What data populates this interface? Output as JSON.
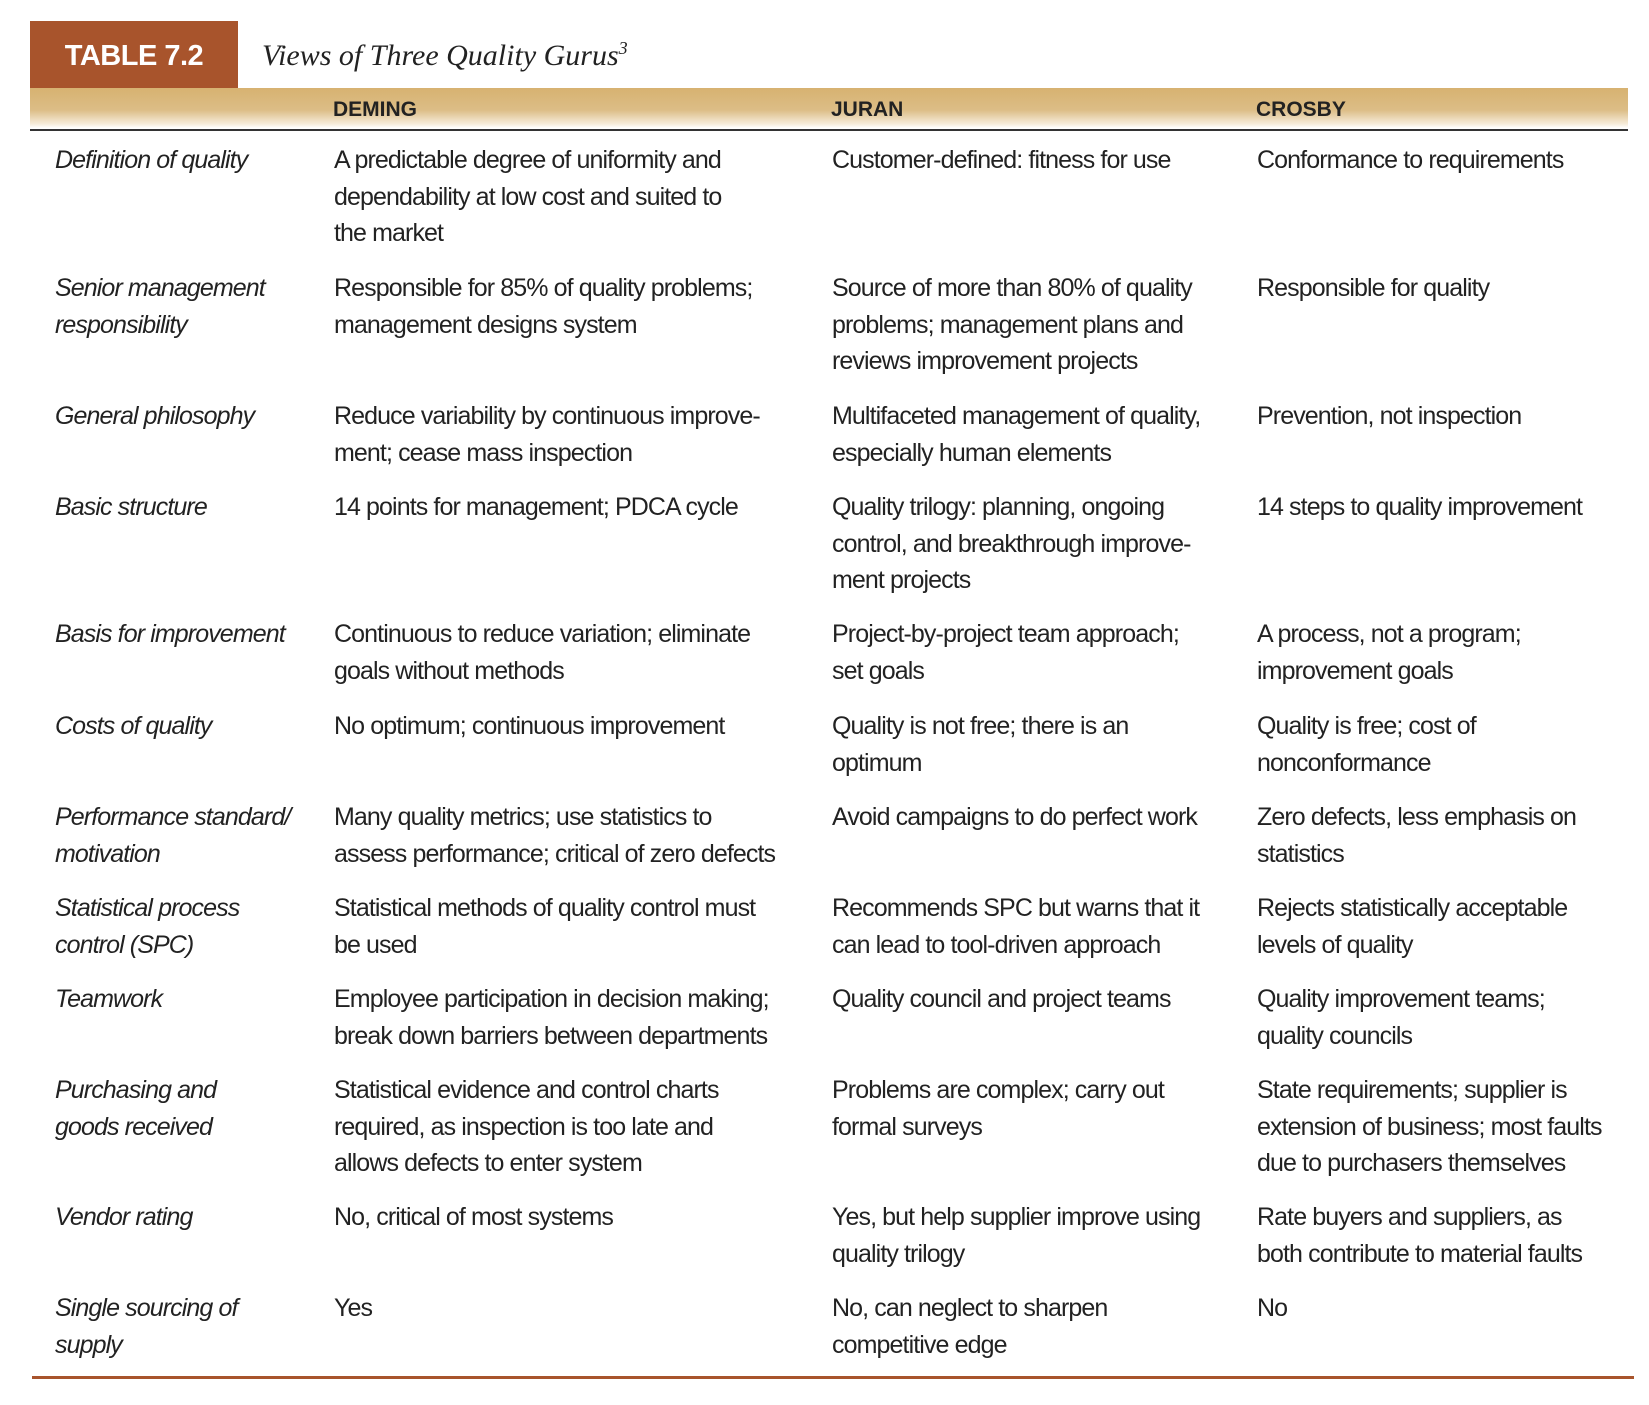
{
  "table": {
    "number": "TABLE 7.2",
    "title": "Views of Three Quality Gurus",
    "footnote_marker": "3",
    "accent_color": "#a8542c",
    "band_color": "#d7b271",
    "columns": [
      "DEMING",
      "JURAN",
      "CROSBY"
    ],
    "rows": [
      {
        "label": [
          "Definition of quality"
        ],
        "deming": [
          "A predictable degree of uniformity and",
          "dependability at low cost and suited to",
          "the market"
        ],
        "juran": [
          "Customer-defined: fitness for use"
        ],
        "crosby": [
          "Conformance to requirements"
        ]
      },
      {
        "label": [
          "Senior management",
          "responsibility"
        ],
        "deming": [
          "Responsible for 85% of quality problems;",
          "management designs system"
        ],
        "juran": [
          "Source of more than 80% of quality",
          "problems; management plans and",
          "reviews improvement projects"
        ],
        "crosby": [
          "Responsible for quality"
        ]
      },
      {
        "label": [
          "General philosophy"
        ],
        "deming": [
          "Reduce variability by continuous improve-",
          "ment; cease mass inspection"
        ],
        "juran": [
          "Multifaceted management of quality,",
          "especially human elements"
        ],
        "crosby": [
          "Prevention, not inspection"
        ]
      },
      {
        "label": [
          "Basic structure"
        ],
        "deming": [
          "14 points for management; PDCA cycle"
        ],
        "juran": [
          "Quality trilogy: planning, ongoing",
          "control, and breakthrough improve-",
          "ment projects"
        ],
        "crosby": [
          "14 steps to quality improvement"
        ]
      },
      {
        "label": [
          "Basis for improvement"
        ],
        "deming": [
          "Continuous to reduce variation; eliminate",
          "goals without methods"
        ],
        "juran": [
          "Project-by-project team approach;",
          "set goals"
        ],
        "crosby": [
          "A process, not a program;",
          "improvement goals"
        ]
      },
      {
        "label": [
          "Costs of quality"
        ],
        "deming": [
          "No optimum; continuous improvement"
        ],
        "juran": [
          "Quality is not free; there is an",
          "optimum"
        ],
        "crosby": [
          "Quality is free; cost of",
          "nonconformance"
        ]
      },
      {
        "label": [
          "Performance standard/",
          "motivation"
        ],
        "deming": [
          "Many quality metrics; use statistics to",
          "assess performance; critical of zero defects"
        ],
        "juran": [
          "Avoid campaigns to do perfect work"
        ],
        "crosby": [
          "Zero defects, less emphasis on",
          "statistics"
        ]
      },
      {
        "label": [
          "Statistical process",
          "control (SPC)"
        ],
        "deming": [
          "Statistical methods of quality control must",
          "be used"
        ],
        "juran": [
          "Recommends SPC but warns that it",
          "can lead to tool-driven approach"
        ],
        "crosby": [
          "Rejects statistically acceptable",
          "levels of quality"
        ]
      },
      {
        "label": [
          "Teamwork"
        ],
        "deming": [
          "Employee participation in decision making;",
          "break down barriers between departments"
        ],
        "juran": [
          "Quality council and project teams"
        ],
        "crosby": [
          "Quality improvement teams;",
          "quality councils"
        ]
      },
      {
        "label": [
          "Purchasing and",
          "goods received"
        ],
        "deming": [
          "Statistical evidence and control charts",
          "required, as inspection is too late and",
          "allows defects to enter system"
        ],
        "juran": [
          "Problems are complex; carry out",
          "formal surveys"
        ],
        "crosby": [
          "State requirements; supplier is",
          "extension of business; most faults",
          "due to purchasers themselves"
        ]
      },
      {
        "label": [
          "Vendor rating"
        ],
        "deming": [
          "No, critical of most systems"
        ],
        "juran": [
          "Yes, but help supplier improve using",
          "quality trilogy"
        ],
        "crosby": [
          "Rate buyers and suppliers, as",
          "both contribute to material faults"
        ]
      },
      {
        "label": [
          "Single sourcing of",
          "supply"
        ],
        "deming": [
          "Yes"
        ],
        "juran": [
          "No, can neglect to sharpen",
          "competitive edge"
        ],
        "crosby": [
          "No"
        ]
      }
    ]
  }
}
